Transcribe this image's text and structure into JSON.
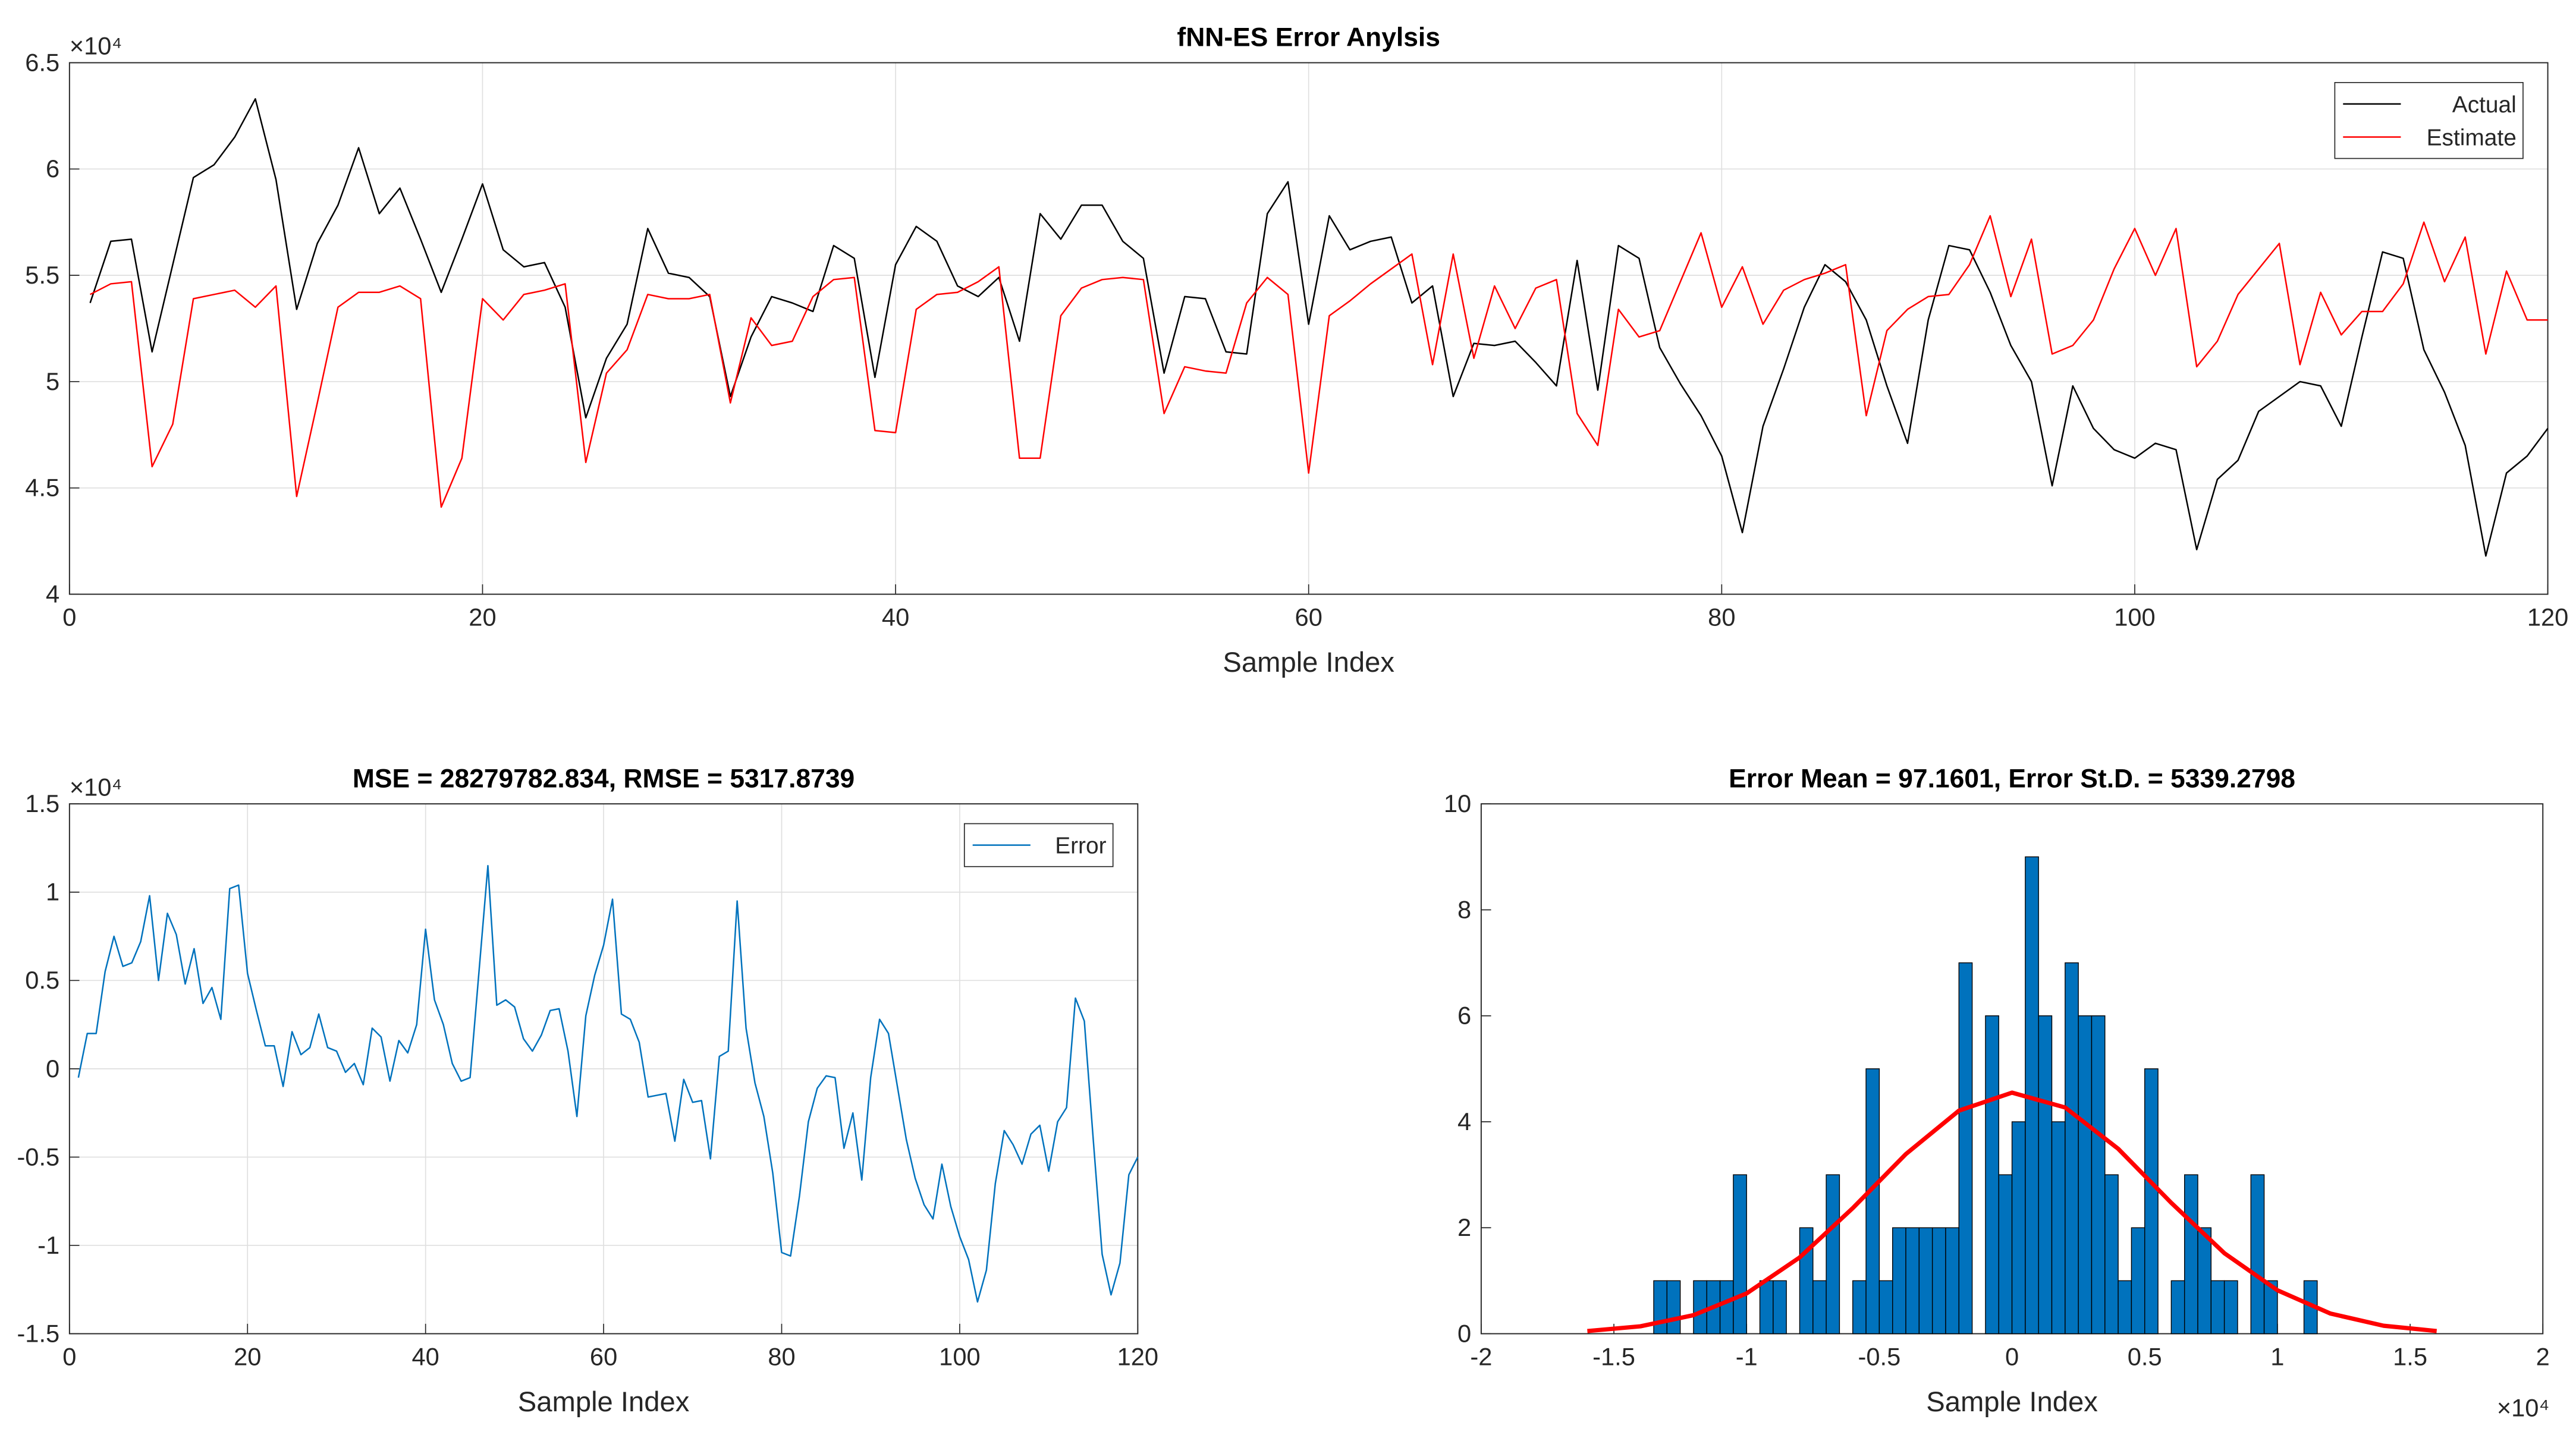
{
  "chart_data": [
    {
      "type": "line",
      "title": "fNN-ES Error Anylsis",
      "xlabel": "Sample Index",
      "y_exponent": "×10⁴",
      "x": [
        1,
        2,
        3,
        4,
        5,
        6,
        7,
        8,
        9,
        10,
        11,
        12,
        13,
        14,
        15,
        16,
        17,
        18,
        19,
        20,
        21,
        22,
        23,
        24,
        25,
        26,
        27,
        28,
        29,
        30,
        31,
        32,
        33,
        34,
        35,
        36,
        37,
        38,
        39,
        40,
        41,
        42,
        43,
        44,
        45,
        46,
        47,
        48,
        49,
        50,
        51,
        52,
        53,
        54,
        55,
        56,
        57,
        58,
        59,
        60,
        61,
        62,
        63,
        64,
        65,
        66,
        67,
        68,
        69,
        70,
        71,
        72,
        73,
        74,
        75,
        76,
        77,
        78,
        79,
        80,
        81,
        82,
        83,
        84,
        85,
        86,
        87,
        88,
        89,
        90,
        91,
        92,
        93,
        94,
        95,
        96,
        97,
        98,
        99,
        100,
        101,
        102,
        103,
        104,
        105,
        106,
        107,
        108,
        109,
        110,
        111,
        112,
        113,
        114,
        115,
        116,
        117,
        118,
        119,
        120
      ],
      "series": [
        {
          "name": "Actual",
          "color": "#000000",
          "values": [
            5.37,
            5.66,
            5.67,
            5.14,
            5.55,
            5.96,
            6.02,
            6.15,
            6.33,
            5.95,
            5.34,
            5.65,
            5.83,
            6.1,
            5.79,
            5.91,
            5.67,
            5.42,
            5.67,
            5.93,
            5.62,
            5.54,
            5.56,
            5.35,
            4.83,
            5.11,
            5.27,
            5.72,
            5.51,
            5.49,
            5.4,
            4.93,
            5.21,
            5.4,
            5.37,
            5.33,
            5.64,
            5.58,
            5.02,
            5.55,
            5.73,
            5.66,
            5.45,
            5.4,
            5.49,
            5.19,
            5.79,
            5.67,
            5.83,
            5.83,
            5.66,
            5.58,
            5.04,
            5.4,
            5.39,
            5.14,
            5.13,
            5.79,
            5.94,
            5.27,
            5.78,
            5.62,
            5.66,
            5.68,
            5.37,
            5.45,
            4.93,
            5.18,
            5.17,
            5.19,
            5.09,
            4.98,
            5.57,
            4.96,
            5.64,
            5.58,
            5.16,
            4.99,
            4.84,
            4.65,
            4.29,
            4.79,
            5.06,
            5.35,
            5.55,
            5.47,
            5.29,
            4.98,
            4.71,
            5.29,
            5.64,
            5.62,
            5.42,
            5.17,
            5.0,
            4.51,
            4.98,
            4.78,
            4.68,
            4.64,
            4.71,
            4.68,
            4.21,
            4.54,
            4.63,
            4.86,
            4.93,
            5.0,
            4.98,
            4.79,
            5.21,
            5.61,
            5.58,
            5.15,
            4.95,
            4.7,
            4.18,
            4.57,
            4.65,
            4.78
          ]
        },
        {
          "name": "Estimate",
          "color": "#ff0000",
          "values": [
            5.41,
            5.46,
            5.47,
            4.6,
            4.8,
            5.39,
            5.41,
            5.43,
            5.35,
            5.45,
            4.46,
            4.9,
            5.35,
            5.42,
            5.42,
            5.45,
            5.39,
            4.41,
            4.64,
            5.39,
            5.29,
            5.41,
            5.43,
            5.46,
            4.62,
            5.04,
            5.15,
            5.41,
            5.39,
            5.39,
            5.41,
            4.9,
            5.3,
            5.17,
            5.19,
            5.4,
            5.48,
            5.49,
            4.77,
            4.76,
            5.34,
            5.41,
            5.42,
            5.47,
            5.54,
            4.64,
            4.64,
            5.31,
            5.44,
            5.48,
            5.49,
            5.48,
            4.85,
            5.07,
            5.05,
            5.04,
            5.37,
            5.49,
            5.41,
            4.57,
            5.31,
            5.38,
            5.46,
            5.53,
            5.6,
            5.08,
            5.6,
            5.11,
            5.45,
            5.25,
            5.44,
            5.48,
            4.85,
            4.7,
            5.34,
            5.21,
            5.24,
            5.47,
            5.7,
            5.35,
            5.54,
            5.27,
            5.43,
            5.48,
            5.51,
            5.55,
            4.84,
            5.24,
            5.34,
            5.4,
            5.41,
            5.55,
            5.78,
            5.4,
            5.67,
            5.13,
            5.17,
            5.29,
            5.53,
            5.72,
            5.5,
            5.72,
            5.07,
            5.19,
            5.41,
            5.53,
            5.65,
            5.08,
            5.42,
            5.22,
            5.33,
            5.33,
            5.46,
            5.75,
            5.47,
            5.68,
            5.13,
            5.52,
            5.29,
            5.29
          ]
        }
      ],
      "xlim": [
        0,
        120
      ],
      "xticks": [
        0,
        20,
        40,
        60,
        80,
        100,
        120
      ],
      "ylim": [
        4,
        6.5
      ],
      "yticks": [
        4,
        4.5,
        5,
        5.5,
        6,
        6.5
      ],
      "grid": true,
      "legend": "northeast"
    },
    {
      "type": "line",
      "title": "MSE = 28279782.834, RMSE = 5317.8739",
      "xlabel": "Sample Index",
      "y_exponent": "×10⁴",
      "x": [
        1,
        2,
        3,
        4,
        5,
        6,
        7,
        8,
        9,
        10,
        11,
        12,
        13,
        14,
        15,
        16,
        17,
        18,
        19,
        20,
        21,
        22,
        23,
        24,
        25,
        26,
        27,
        28,
        29,
        30,
        31,
        32,
        33,
        34,
        35,
        36,
        37,
        38,
        39,
        40,
        41,
        42,
        43,
        44,
        45,
        46,
        47,
        48,
        49,
        50,
        51,
        52,
        53,
        54,
        55,
        56,
        57,
        58,
        59,
        60,
        61,
        62,
        63,
        64,
        65,
        66,
        67,
        68,
        69,
        70,
        71,
        72,
        73,
        74,
        75,
        76,
        77,
        78,
        79,
        80,
        81,
        82,
        83,
        84,
        85,
        86,
        87,
        88,
        89,
        90,
        91,
        92,
        93,
        94,
        95,
        96,
        97,
        98,
        99,
        100,
        101,
        102,
        103,
        104,
        105,
        106,
        107,
        108,
        109,
        110,
        111,
        112,
        113,
        114,
        115,
        116,
        117,
        118,
        119,
        120
      ],
      "series": [
        {
          "name": "Error",
          "color": "#0072bd",
          "values": [
            -0.05,
            0.2,
            0.2,
            0.55,
            0.75,
            0.58,
            0.6,
            0.72,
            0.98,
            0.5,
            0.88,
            0.76,
            0.48,
            0.68,
            0.37,
            0.46,
            0.28,
            1.02,
            1.04,
            0.54,
            0.33,
            0.13,
            0.13,
            -0.1,
            0.21,
            0.08,
            0.12,
            0.31,
            0.12,
            0.1,
            -0.02,
            0.03,
            -0.09,
            0.23,
            0.18,
            -0.07,
            0.16,
            0.09,
            0.25,
            0.79,
            0.39,
            0.25,
            0.03,
            -0.07,
            -0.05,
            0.55,
            1.15,
            0.36,
            0.39,
            0.35,
            0.17,
            0.1,
            0.19,
            0.33,
            0.34,
            0.1,
            -0.27,
            0.3,
            0.53,
            0.7,
            0.96,
            0.31,
            0.28,
            0.15,
            -0.16,
            -0.15,
            -0.14,
            -0.41,
            -0.06,
            -0.19,
            -0.18,
            -0.51,
            0.07,
            0.1,
            0.95,
            0.23,
            -0.08,
            -0.27,
            -0.59,
            -1.04,
            -1.06,
            -0.72,
            -0.3,
            -0.11,
            -0.04,
            -0.05,
            -0.45,
            -0.25,
            -0.63,
            -0.05,
            0.28,
            0.2,
            -0.1,
            -0.4,
            -0.62,
            -0.77,
            -0.85,
            -0.54,
            -0.78,
            -0.95,
            -1.08,
            -1.32,
            -1.14,
            -0.65,
            -0.35,
            -0.43,
            -0.54,
            -0.37,
            -0.32,
            -0.58,
            -0.3,
            -0.22,
            0.4,
            0.27,
            -0.4,
            -1.05,
            -1.28,
            -1.1,
            -0.6,
            -0.5
          ]
        }
      ],
      "xlim": [
        0,
        120
      ],
      "xticks": [
        0,
        20,
        40,
        60,
        80,
        100,
        120
      ],
      "ylim": [
        -1.5,
        1.5
      ],
      "yticks": [
        -1.5,
        -1,
        -0.5,
        0,
        0.5,
        1,
        1.5
      ],
      "grid": true,
      "legend": "northeast"
    },
    {
      "type": "histogram",
      "title": "Error Mean = 97.1601, Error St.D. = 5339.2798",
      "xlabel": "Sample Index",
      "x_exponent": "×10⁴",
      "bins": [
        -1.35,
        -1.3,
        -1.25,
        -1.2,
        -1.15,
        -1.1,
        -1.05,
        -1,
        -0.95,
        -0.9,
        -0.85,
        -0.8,
        -0.75,
        -0.7,
        -0.65,
        -0.6,
        -0.55,
        -0.5,
        -0.45,
        -0.4,
        -0.35,
        -0.3,
        -0.25,
        -0.2,
        -0.15,
        -0.1,
        -0.05,
        0,
        0.05,
        0.1,
        0.15,
        0.2,
        0.25,
        0.3,
        0.35,
        0.4,
        0.45,
        0.5,
        0.55,
        0.6,
        0.65,
        0.7,
        0.75,
        0.8,
        0.85,
        0.9,
        0.95,
        1,
        1.05,
        1.1,
        1.15
      ],
      "values": [
        1,
        1,
        0,
        1,
        1,
        1,
        3,
        0,
        1,
        1,
        0,
        2,
        1,
        3,
        0,
        1,
        5,
        1,
        2,
        2,
        2,
        2,
        2,
        7,
        0,
        6,
        3,
        4,
        9,
        6,
        4,
        7,
        6,
        6,
        3,
        1,
        2,
        5,
        0,
        1,
        3,
        2,
        1,
        1,
        0,
        3,
        1,
        0,
        0,
        1
      ],
      "color": "#0072bd",
      "fit_x": [
        -1.6,
        -1.4,
        -1.2,
        -1,
        -0.8,
        -0.6,
        -0.4,
        -0.2,
        0,
        0.2,
        0.4,
        0.6,
        0.8,
        1,
        1.2,
        1.4,
        1.6
      ],
      "fit_values": [
        0.05,
        0.14,
        0.35,
        0.76,
        1.44,
        2.37,
        3.39,
        4.21,
        4.55,
        4.27,
        3.49,
        2.47,
        1.52,
        0.82,
        0.38,
        0.15,
        0.05
      ],
      "fit_color": "#ff0000",
      "xlim": [
        -2,
        2
      ],
      "xticks": [
        -2,
        -1.5,
        -1,
        -0.5,
        0,
        0.5,
        1,
        1.5,
        2
      ],
      "ylim": [
        0,
        10
      ],
      "yticks": [
        0,
        2,
        4,
        6,
        8,
        10
      ],
      "grid": false
    }
  ]
}
